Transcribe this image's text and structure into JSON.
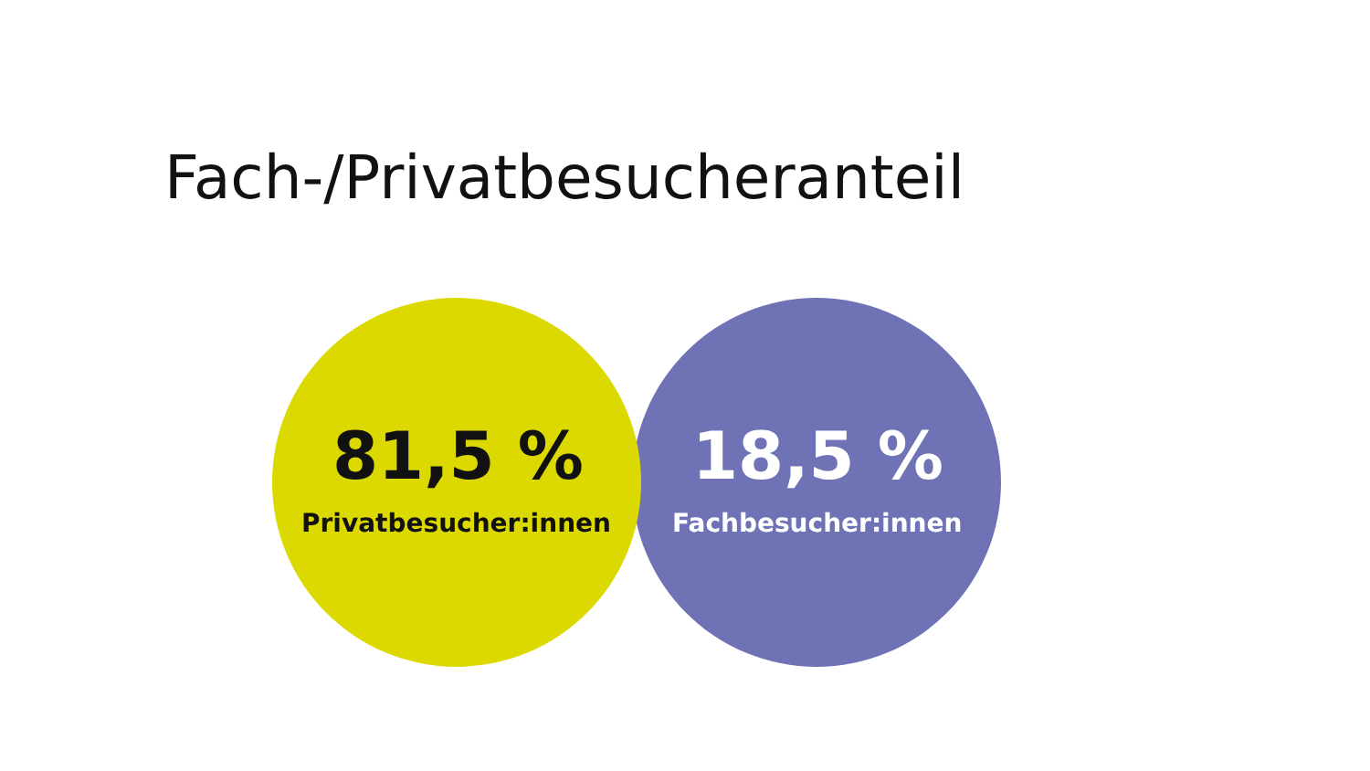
{
  "chart_data": {
    "type": "other",
    "title": "Fach-/Privatbesucheranteil",
    "categories": [
      "Privatbesucher:innen",
      "Fachbesucher:innen"
    ],
    "values": [
      81.5,
      18.5
    ],
    "value_labels": [
      "81,5 %",
      "18,5 %"
    ],
    "colors": [
      "#dcd900",
      "#6f73b5"
    ]
  }
}
